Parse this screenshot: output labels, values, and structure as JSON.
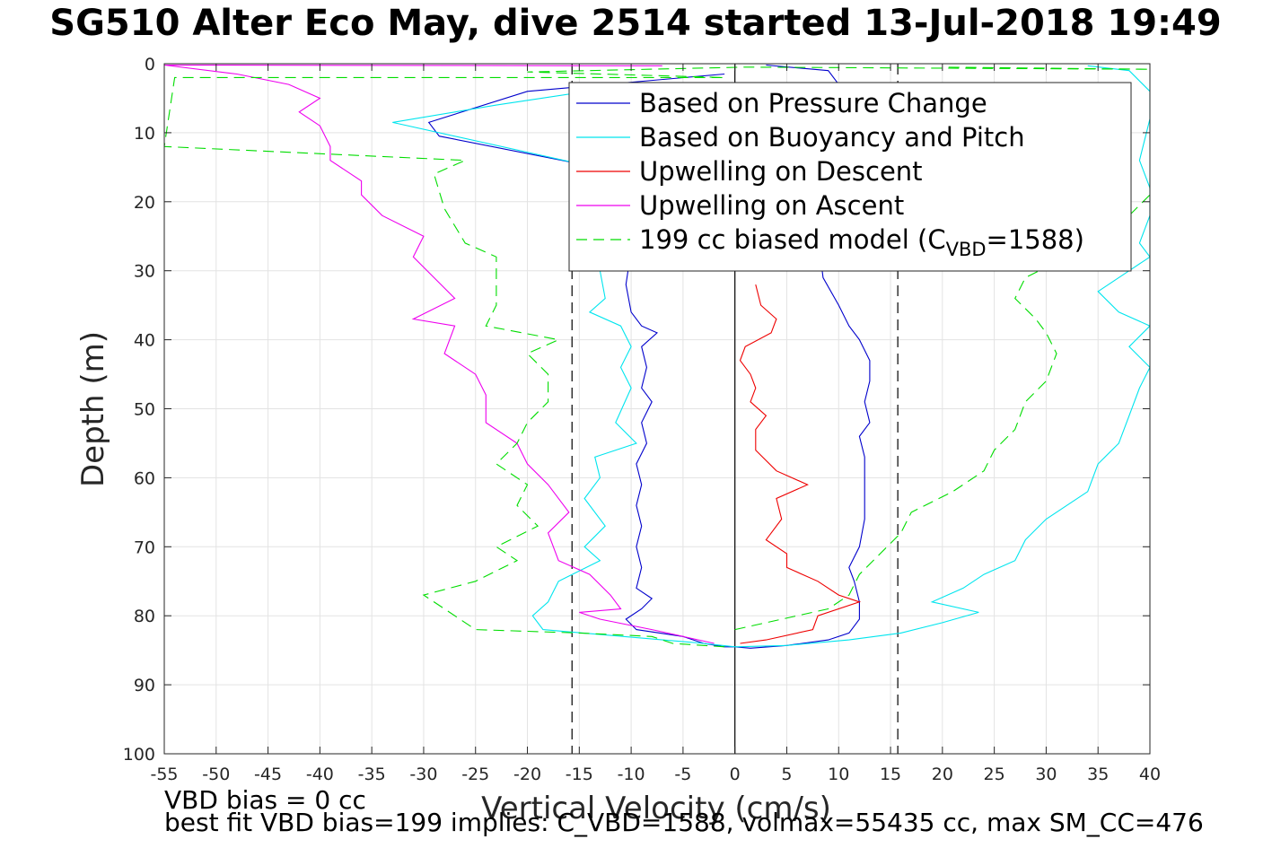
{
  "chart_data": {
    "type": "line",
    "title": "SG510 Alter Eco May, dive 2514 started 13-Jul-2018 19:49",
    "xlabel": "Vertical Velocity (cm/s)",
    "ylabel": "Depth (m)",
    "xlim": [
      -55,
      40
    ],
    "ylim": [
      0,
      100
    ],
    "y_reversed": true,
    "grid": true,
    "legend_position": "top-right",
    "x_ticks": [
      "-55",
      "-50",
      "-45",
      "-40",
      "-35",
      "-30",
      "-25",
      "-20",
      "-15",
      "-10",
      "-5",
      "0",
      "5",
      "10",
      "15",
      "20",
      "25",
      "30",
      "35",
      "40"
    ],
    "y_ticks": [
      "0",
      "10",
      "20",
      "30",
      "40",
      "50",
      "60",
      "70",
      "80",
      "90",
      "100"
    ],
    "reference_lines": [
      {
        "x": 0,
        "style": "solid",
        "color": "#000000"
      },
      {
        "x": -15.7,
        "style": "dashed",
        "color": "#000000"
      },
      {
        "x": 15.7,
        "style": "dashed",
        "color": "#000000"
      }
    ],
    "series": [
      {
        "name": "Based on Pressure Change",
        "color": "#0000cc",
        "style": "solid",
        "points": [
          [
            -1,
            1.5
          ],
          [
            -20,
            4
          ],
          [
            -29.5,
            8.5
          ],
          [
            -28.5,
            10.5
          ],
          [
            -15,
            14.5
          ],
          [
            -10,
            17
          ],
          [
            -10,
            22
          ],
          [
            -10,
            27
          ],
          [
            -10.5,
            32
          ],
          [
            -10,
            36
          ],
          [
            -9,
            38
          ],
          [
            -7.5,
            39
          ],
          [
            -9,
            41
          ],
          [
            -8.5,
            44
          ],
          [
            -9,
            47
          ],
          [
            -8,
            49
          ],
          [
            -9,
            52
          ],
          [
            -8.5,
            55
          ],
          [
            -9.5,
            58
          ],
          [
            -9,
            61
          ],
          [
            -9.5,
            64
          ],
          [
            -9,
            67
          ],
          [
            -9.5,
            70
          ],
          [
            -9,
            73
          ],
          [
            -9.5,
            76
          ],
          [
            -8,
            77.5
          ],
          [
            -9,
            79
          ],
          [
            -10.5,
            80.5
          ],
          [
            -9.5,
            82
          ],
          [
            -5,
            83
          ],
          [
            -3,
            84
          ],
          [
            -1,
            84.5
          ],
          [
            0,
            84.5
          ],
          [
            1.5,
            84.7
          ],
          [
            5,
            84.3
          ],
          [
            9,
            83.5
          ],
          [
            11,
            82.5
          ],
          [
            12,
            80.5
          ],
          [
            12,
            78
          ],
          [
            11.5,
            75
          ],
          [
            11,
            73
          ],
          [
            12,
            70
          ],
          [
            12.5,
            66
          ],
          [
            12.5,
            61
          ],
          [
            12.5,
            57
          ],
          [
            12,
            54
          ],
          [
            13,
            52
          ],
          [
            12.5,
            49
          ],
          [
            13,
            46
          ],
          [
            13,
            43
          ],
          [
            12,
            40
          ],
          [
            11,
            38
          ],
          [
            10,
            35
          ],
          [
            8.5,
            31
          ],
          [
            8,
            25
          ],
          [
            7.5,
            18
          ],
          [
            9,
            10
          ],
          [
            10,
            6
          ],
          [
            10,
            3
          ],
          [
            9,
            1
          ],
          [
            3,
            0.2
          ]
        ]
      },
      {
        "name": "Based on Buoyancy and Pitch",
        "color": "#00e5ee",
        "style": "solid",
        "points": [
          [
            -12,
            3.5
          ],
          [
            -23,
            6
          ],
          [
            -33,
            8.5
          ],
          [
            -15,
            14.5
          ],
          [
            -13,
            20
          ],
          [
            -13,
            25
          ],
          [
            -13,
            30
          ],
          [
            -12.5,
            34
          ],
          [
            -14,
            36
          ],
          [
            -11,
            38
          ],
          [
            -10,
            41
          ],
          [
            -11,
            44
          ],
          [
            -10,
            47
          ],
          [
            -11.5,
            52
          ],
          [
            -9.5,
            55
          ],
          [
            -13.5,
            57
          ],
          [
            -13,
            60
          ],
          [
            -14.5,
            63
          ],
          [
            -12.5,
            67
          ],
          [
            -14.5,
            70
          ],
          [
            -13,
            72
          ],
          [
            -17,
            75
          ],
          [
            -18,
            78
          ],
          [
            -19.5,
            80
          ],
          [
            -18.5,
            82
          ],
          [
            -3,
            84
          ],
          [
            0,
            84.5
          ],
          [
            5,
            84.3
          ],
          [
            11,
            83.5
          ],
          [
            16,
            82.5
          ],
          [
            20,
            81
          ],
          [
            23.5,
            79.5
          ],
          [
            19,
            78
          ],
          [
            22,
            76
          ],
          [
            24,
            74
          ],
          [
            27,
            72
          ],
          [
            28,
            69
          ],
          [
            30,
            66
          ],
          [
            32,
            64
          ],
          [
            34,
            62
          ],
          [
            35,
            58
          ],
          [
            37,
            55
          ],
          [
            38,
            51
          ],
          [
            39,
            47
          ],
          [
            40,
            44
          ],
          [
            38,
            41
          ],
          [
            40,
            38
          ],
          [
            37,
            36
          ],
          [
            35,
            33
          ],
          [
            38,
            30
          ],
          [
            40,
            28
          ],
          [
            39,
            26
          ],
          [
            40,
            22
          ],
          [
            40,
            18
          ],
          [
            39,
            14
          ],
          [
            40,
            8
          ],
          [
            40,
            4
          ],
          [
            38,
            1
          ],
          [
            34,
            0.3
          ]
        ]
      },
      {
        "name": "Upwelling on Descent",
        "color": "#ee0000",
        "style": "solid",
        "points": [
          [
            2,
            32
          ],
          [
            2.5,
            35
          ],
          [
            4,
            37
          ],
          [
            3.5,
            39
          ],
          [
            1,
            41
          ],
          [
            0.5,
            43
          ],
          [
            1.5,
            45
          ],
          [
            2,
            47
          ],
          [
            1.5,
            49
          ],
          [
            3,
            51
          ],
          [
            2,
            53
          ],
          [
            2,
            56
          ],
          [
            4,
            59
          ],
          [
            7,
            61
          ],
          [
            4,
            63
          ],
          [
            4.5,
            66
          ],
          [
            3,
            69
          ],
          [
            5,
            71
          ],
          [
            5,
            73
          ],
          [
            8,
            75
          ],
          [
            10,
            77
          ],
          [
            12,
            78
          ],
          [
            8,
            80
          ],
          [
            7.5,
            82
          ],
          [
            3,
            83.5
          ],
          [
            0.5,
            84
          ]
        ]
      },
      {
        "name": "Upwelling on Ascent",
        "color": "#ee00ee",
        "style": "solid",
        "points": [
          [
            -2,
            84
          ],
          [
            -3.5,
            83.5
          ],
          [
            -8,
            82
          ],
          [
            -13,
            80.5
          ],
          [
            -15,
            79.5
          ],
          [
            -11,
            79
          ],
          [
            -12,
            77
          ],
          [
            -14,
            74
          ],
          [
            -17,
            72
          ],
          [
            -18,
            68
          ],
          [
            -16,
            65
          ],
          [
            -18,
            61
          ],
          [
            -20,
            58
          ],
          [
            -21,
            55
          ],
          [
            -24,
            52
          ],
          [
            -24,
            48
          ],
          [
            -25,
            45
          ],
          [
            -28,
            42
          ],
          [
            -27,
            38
          ],
          [
            -31,
            37
          ],
          [
            -27,
            34
          ],
          [
            -29,
            31
          ],
          [
            -31,
            28
          ],
          [
            -30,
            25
          ],
          [
            -34,
            22
          ],
          [
            -36,
            19
          ],
          [
            -36,
            17
          ],
          [
            -39,
            14
          ],
          [
            -39,
            12
          ],
          [
            -40,
            9
          ],
          [
            -42,
            7
          ],
          [
            -40,
            5
          ],
          [
            -43,
            3
          ],
          [
            -48,
            1.5
          ],
          [
            -55,
            0.2
          ],
          [
            -7,
            0.3
          ]
        ]
      },
      {
        "name": "199 cc biased model (C_VBD=1588)",
        "color": "#00dd00",
        "style": "dashed",
        "points": [
          [
            -1,
            84.5
          ],
          [
            -6,
            84
          ],
          [
            -8,
            83
          ],
          [
            -15,
            82.5
          ],
          [
            -25,
            82
          ],
          [
            -28,
            79
          ],
          [
            -30,
            77
          ],
          [
            -25,
            75
          ],
          [
            -21,
            72
          ],
          [
            -23,
            70
          ],
          [
            -19,
            67
          ],
          [
            -21,
            64
          ],
          [
            -20,
            61
          ],
          [
            -23,
            58
          ],
          [
            -21,
            55
          ],
          [
            -20,
            52
          ],
          [
            -18,
            49
          ],
          [
            -18,
            45
          ],
          [
            -20,
            42
          ],
          [
            -17,
            40
          ],
          [
            -24,
            38
          ],
          [
            -23,
            35
          ],
          [
            -23,
            31
          ],
          [
            -23,
            28
          ],
          [
            -26,
            26
          ],
          [
            -28,
            21
          ],
          [
            -29,
            16
          ],
          [
            -26,
            14
          ],
          [
            -55,
            12
          ],
          [
            -54,
            2
          ],
          [
            -1,
            2
          ],
          [
            -20,
            1.2
          ],
          [
            1,
            0.5
          ],
          [
            40,
            0.8
          ],
          [
            20,
            0.5
          ]
        ]
      },
      {
        "name": "199 cc biased model (C_VBD=1588)",
        "color": "#00dd00",
        "style": "dashed",
        "points": [
          [
            0,
            82
          ],
          [
            6,
            80
          ],
          [
            9,
            79
          ],
          [
            11,
            77
          ],
          [
            12,
            74
          ],
          [
            14,
            71
          ],
          [
            16,
            68
          ],
          [
            17,
            65
          ],
          [
            21,
            62
          ],
          [
            24,
            59
          ],
          [
            25,
            56
          ],
          [
            27,
            53
          ],
          [
            28,
            49
          ],
          [
            30,
            46
          ],
          [
            31,
            42
          ],
          [
            30,
            39
          ],
          [
            29,
            37
          ],
          [
            27,
            34
          ],
          [
            28,
            31
          ],
          [
            32,
            28
          ],
          [
            35,
            25
          ],
          [
            38,
            22
          ],
          [
            40,
            19
          ],
          [
            40,
            16
          ]
        ]
      }
    ]
  },
  "legend": {
    "entries": [
      "Based on Pressure Change",
      "Based on Buoyancy and Pitch",
      "Upwelling on Descent",
      "Upwelling on Ascent"
    ],
    "model_prefix": "199 cc biased model (C",
    "model_sub": "VBD",
    "model_suffix": "=1588)"
  },
  "footer": {
    "line1": "VBD bias = 0 cc",
    "line2": "best fit VBD bias=199 implies: C_VBD=1588, volmax=55435 cc, max SM_CC=476"
  },
  "colors": {
    "pressure": "#0000cc",
    "buoyancy": "#00e5ee",
    "descent": "#ee0000",
    "ascent": "#ee00ee",
    "model": "#00dd00"
  }
}
